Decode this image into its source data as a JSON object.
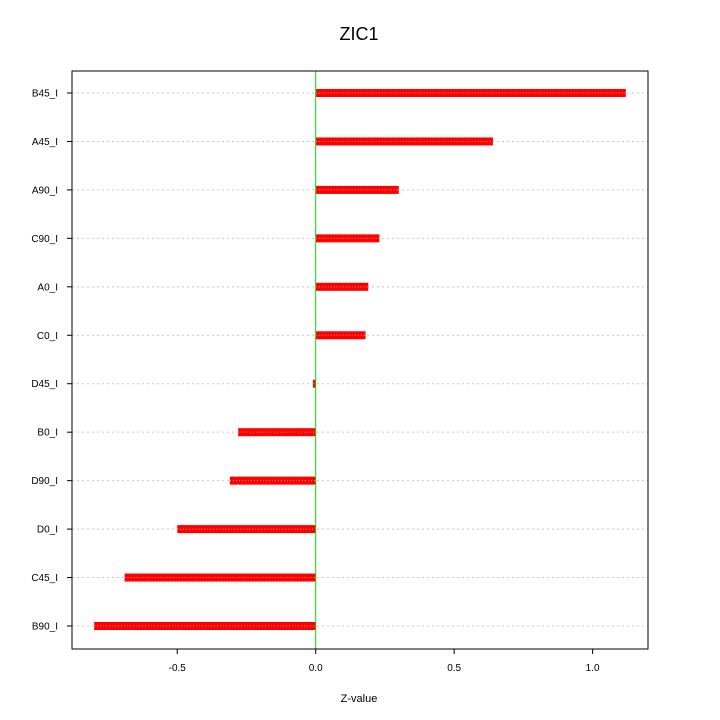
{
  "chart_data": {
    "type": "bar",
    "orientation": "horizontal",
    "title": "ZIC1",
    "xlabel": "Z-value",
    "ylabel": "",
    "xlim": [
      -0.88,
      1.2
    ],
    "xticks": [
      -0.5,
      0.0,
      0.5,
      1.0
    ],
    "xtick_labels": [
      "-0.5",
      "0.0",
      "0.5",
      "1.0"
    ],
    "categories": [
      "B45_I",
      "A45_I",
      "A90_I",
      "C90_I",
      "A0_I",
      "C0_I",
      "D45_I",
      "B0_I",
      "D90_I",
      "D0_I",
      "C45_I",
      "B90_I"
    ],
    "values": [
      1.12,
      0.64,
      0.3,
      0.23,
      0.19,
      0.18,
      -0.01,
      -0.28,
      -0.31,
      -0.5,
      -0.69,
      -0.8
    ],
    "grid": "horizontal dotted",
    "reference_line": 0,
    "colors": {
      "bar": "#ff0000",
      "reference": "#00dd00",
      "grid": "#c8c8c8"
    }
  }
}
